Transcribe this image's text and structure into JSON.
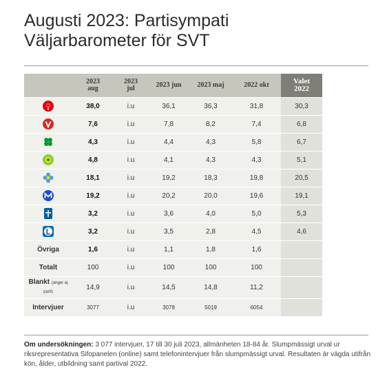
{
  "title_line1": "Augusti 2023: Partisympati",
  "title_line2": "Väljarbarometer för SVT",
  "headers": {
    "h1": [
      "2023",
      "aug"
    ],
    "h2": [
      "2023",
      "jul"
    ],
    "h3": "2023 jun",
    "h4": "2023 maj",
    "h5": "2022 okt",
    "h6": [
      "Valet",
      "2022"
    ]
  },
  "parties": [
    {
      "logo": "rose-icon",
      "color": "#e3000f",
      "values": [
        "38,0",
        "i.u",
        "36,1",
        "36,3",
        "31,8",
        "30,3"
      ]
    },
    {
      "logo": "v-icon",
      "color": "#da291c",
      "values": [
        "7,6",
        "i.u",
        "7,8",
        "8,2",
        "7,4",
        "6,8"
      ]
    },
    {
      "logo": "clover-icon",
      "color": "#009933",
      "values": [
        "4,3",
        "i.u",
        "4,4",
        "4,3",
        "5,8",
        "6,7"
      ]
    },
    {
      "logo": "sunflower-icon",
      "color": "#83cf39",
      "values": [
        "4,8",
        "i.u",
        "4,1",
        "4,3",
        "4,3",
        "5,1"
      ]
    },
    {
      "logo": "flower-icon",
      "color": "#4a9fd8",
      "values": [
        "18,1",
        "i.u",
        "19,2",
        "18,3",
        "19,8",
        "20,5"
      ]
    },
    {
      "logo": "m-icon",
      "color": "#1b49dd",
      "values": [
        "19,2",
        "i.u",
        "20,2",
        "20,0",
        "19,6",
        "19,1"
      ]
    },
    {
      "logo": "kd-icon",
      "color": "#005ea1",
      "values": [
        "3,2",
        "i.u",
        "3,6",
        "4,0",
        "5,0",
        "5,3"
      ]
    },
    {
      "logo": "l-icon",
      "color": "#006ab3",
      "values": [
        "3,2",
        "i.u",
        "3,5",
        "2,8",
        "4,5",
        "4,6"
      ]
    }
  ],
  "ovriga": {
    "label": "Övriga",
    "values": [
      "1,6",
      "i.u",
      "1,1",
      "1,8",
      "1,6"
    ]
  },
  "totalt": {
    "label": "Totalt",
    "values": [
      "100",
      "i.u",
      "100",
      "100",
      "100"
    ]
  },
  "blankt": {
    "label": "Blankt",
    "label_small": "(anger ej parti)",
    "values": [
      "14,9",
      "i.u",
      "14,5",
      "14,8",
      "11,2"
    ]
  },
  "intervjuer": {
    "label": "Intervjuer",
    "values": [
      "3077",
      "i.u",
      "3078",
      "5019",
      "6054"
    ]
  },
  "footnote": {
    "bold": "Om undersökningen:",
    "text": " 3 077 intervjuer, 17 till 30 juli 2023, allmänheten 18-84 år. Slumpmässigt urval ur riksrepresentativa Sifopanelen (online) samt telefonintervjuer från slumpmässigt urval. Resultaten är vägda utifrån kön, ålder, utbildning samt partival 2022."
  }
}
